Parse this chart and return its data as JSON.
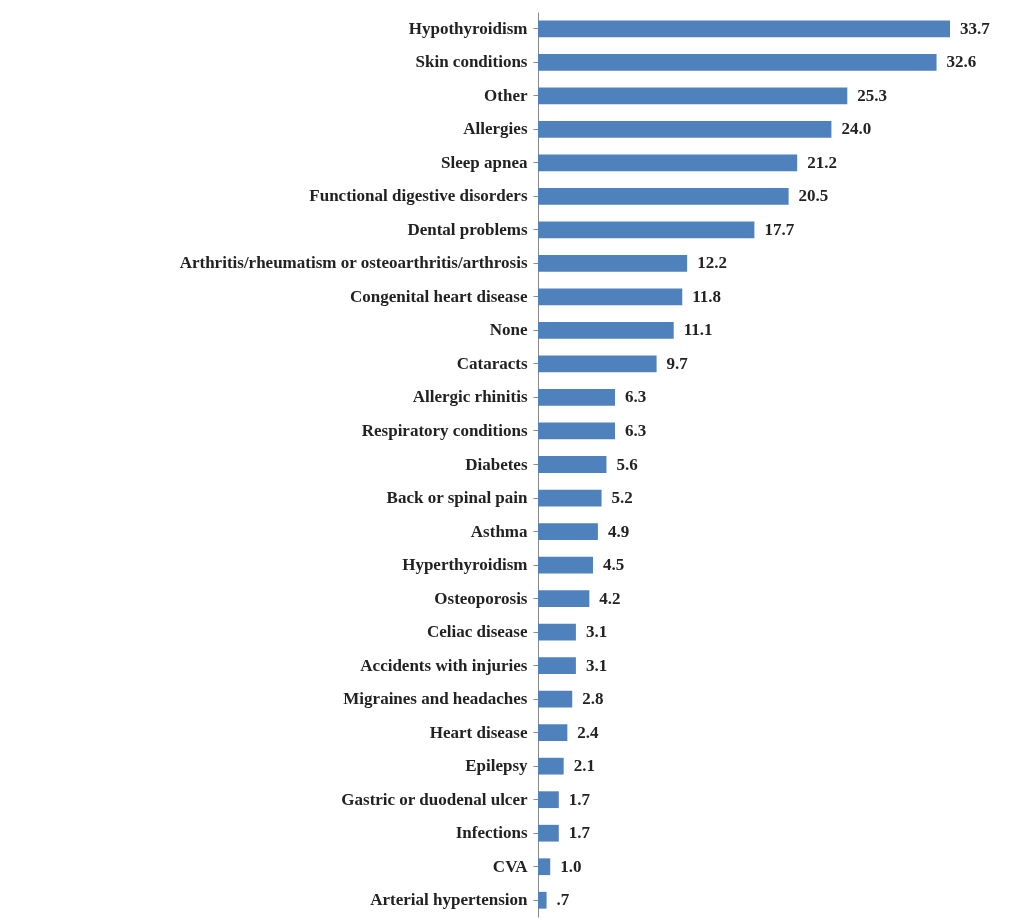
{
  "chart_data": {
    "type": "bar",
    "orientation": "horizontal",
    "categories": [
      "Hypothyroidism",
      "Skin conditions",
      "Other",
      "Allergies",
      "Sleep apnea",
      "Functional digestive disorders",
      "Dental problems",
      "Arthritis/rheumatism or osteoarthritis/arthrosis",
      "Congenital heart disease",
      "None",
      "Cataracts",
      "Allergic rhinitis",
      "Respiratory conditions",
      "Diabetes",
      "Back or spinal pain",
      "Asthma",
      "Hyperthyroidism",
      "Osteoporosis",
      "Celiac disease",
      "Accidents with injuries",
      "Migraines and headaches",
      "Heart disease",
      "Epilepsy",
      "Gastric or duodenal ulcer",
      "Infections",
      "CVA",
      "Arterial hypertension"
    ],
    "values": [
      33.7,
      32.6,
      25.3,
      24.0,
      21.2,
      20.5,
      17.7,
      12.2,
      11.8,
      11.1,
      9.7,
      6.3,
      6.3,
      5.6,
      5.2,
      4.9,
      4.5,
      4.2,
      3.1,
      3.1,
      2.8,
      2.4,
      2.1,
      1.7,
      1.7,
      1.0,
      0.7
    ],
    "value_labels": [
      "33.7",
      "32.6",
      "25.3",
      "24.0",
      "21.2",
      "20.5",
      "17.7",
      "12.2",
      "11.8",
      "11.1",
      "9.7",
      "6.3",
      "6.3",
      "5.6",
      "5.2",
      "4.9",
      "4.5",
      "4.2",
      "3.1",
      "3.1",
      "2.8",
      "2.4",
      "2.1",
      "1.7",
      "1.7",
      "1.0",
      ".7"
    ],
    "color": "#4f81bd"
  }
}
